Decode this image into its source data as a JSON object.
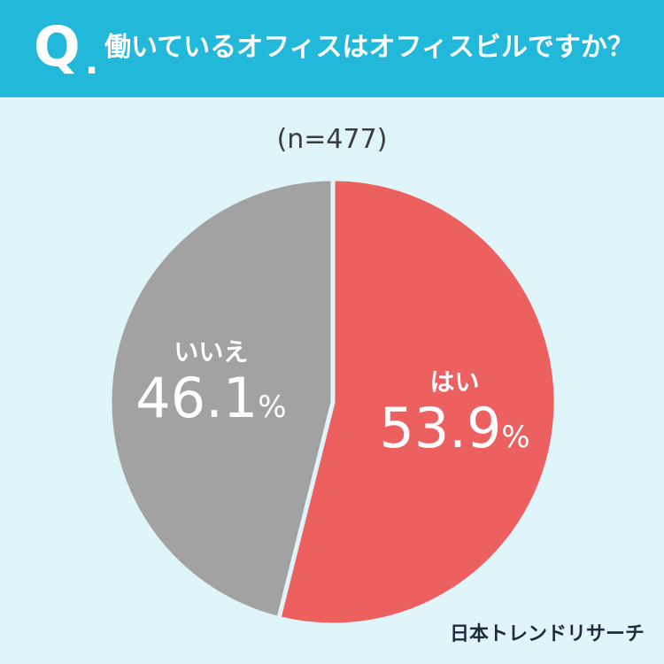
{
  "header": {
    "q_mark": "Q",
    "q_dot": ".",
    "question": "働いているオフィスはオフィスビルですか？"
  },
  "sample_size": "(n=477)",
  "brand": "日本トレンドリサーチ",
  "colors": {
    "header": "#22b8d9",
    "background": "#dff5f9",
    "yes": "#ec6060",
    "no": "#a2a2a2"
  },
  "chart_data": {
    "type": "pie",
    "title": "働いているオフィスはオフィスビルですか？",
    "n": 477,
    "slices": [
      {
        "label": "はい",
        "value": 53.9,
        "display": "53.9",
        "color": "#ec6060"
      },
      {
        "label": "いいえ",
        "value": 46.1,
        "display": "46.1",
        "color": "#a2a2a2"
      }
    ],
    "unit": "%",
    "start": "top",
    "direction": "clockwise"
  }
}
